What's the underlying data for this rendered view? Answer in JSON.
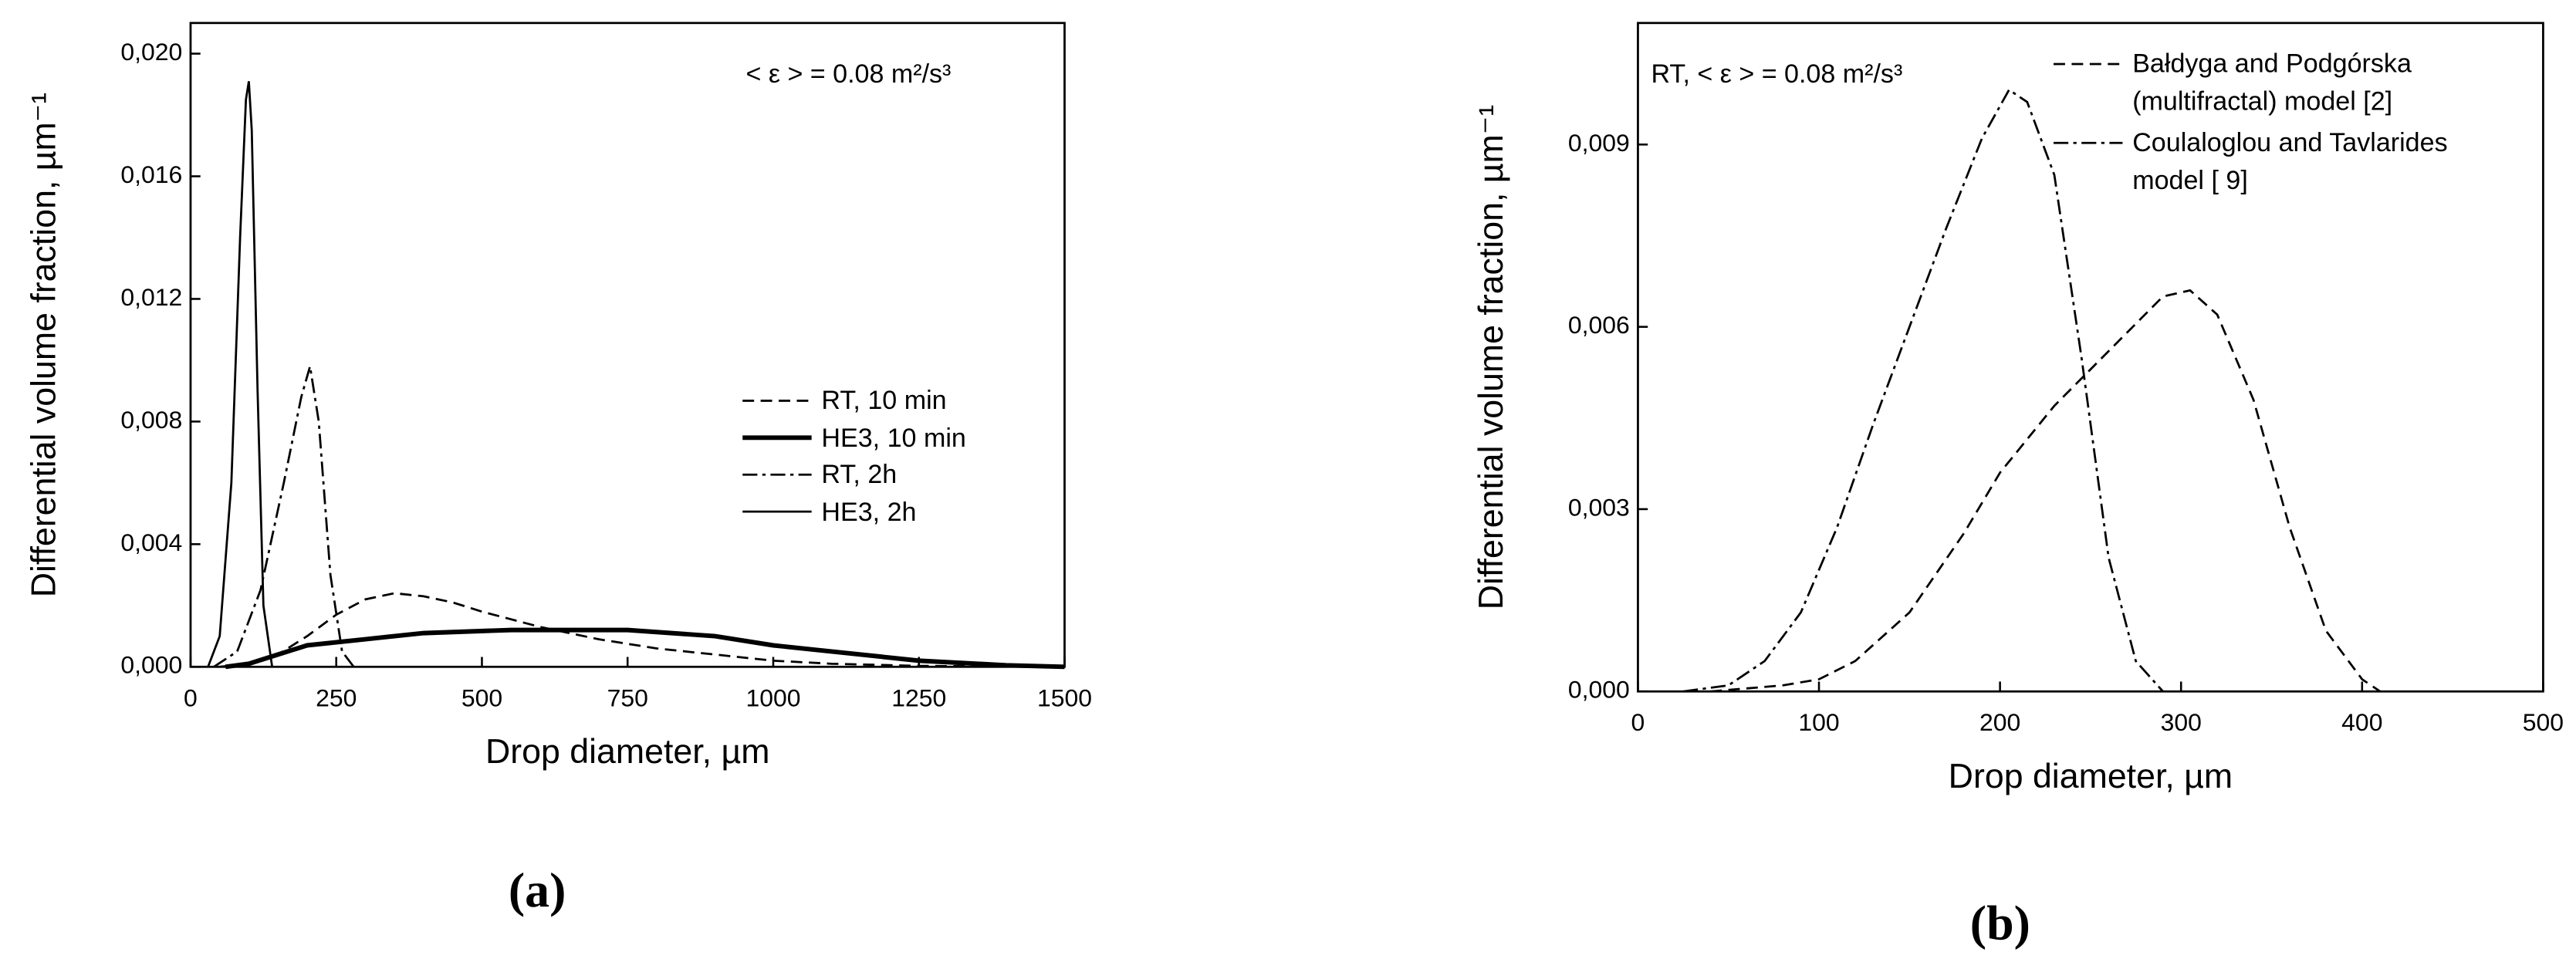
{
  "chart_data": [
    {
      "type": "line",
      "annotation": "< ε > = 0.08 m²/s³",
      "xlabel": "Drop diameter, µm",
      "ylabel": "Differential volume fraction, µm⁻¹",
      "panel_label": "(a)",
      "xlim": [
        0,
        1500
      ],
      "ylim": [
        0,
        0.021
      ],
      "xticks": [
        0,
        250,
        500,
        750,
        1000,
        1250,
        1500
      ],
      "yticks": [
        {
          "value": 0,
          "label": "0,000"
        },
        {
          "value": 0.004,
          "label": "0,004"
        },
        {
          "value": 0.008,
          "label": "0,008"
        },
        {
          "value": 0.012,
          "label": "0,012"
        },
        {
          "value": 0.016,
          "label": "0,016"
        },
        {
          "value": 0.02,
          "label": "0,020"
        }
      ],
      "legend": "center-right",
      "series": [
        {
          "name": "RT, 10 min",
          "color": "#000000",
          "dash": "dash",
          "width": "thin",
          "x": [
            50,
            100,
            150,
            200,
            250,
            300,
            350,
            400,
            450,
            500,
            600,
            700,
            800,
            900,
            1000,
            1100,
            1250,
            1500
          ],
          "values": [
            0,
            0.0001,
            0.0004,
            0.001,
            0.0017,
            0.0022,
            0.0024,
            0.0023,
            0.0021,
            0.0018,
            0.0013,
            0.0009,
            0.0006,
            0.0004,
            0.0002,
            0.0001,
            3e-05,
            0
          ]
        },
        {
          "name": "HE3, 10 min",
          "color": "#000000",
          "dash": "solid",
          "width": "thick",
          "x": [
            60,
            100,
            150,
            200,
            300,
            400,
            550,
            750,
            900,
            1000,
            1100,
            1250,
            1400,
            1500
          ],
          "values": [
            0,
            0.0001,
            0.0004,
            0.0007,
            0.0009,
            0.0011,
            0.0012,
            0.0012,
            0.001,
            0.0007,
            0.0005,
            0.0002,
            5e-05,
            0
          ]
        },
        {
          "name": "RT, 2h",
          "color": "#000000",
          "dash": "dashdot",
          "width": "thin",
          "x": [
            40,
            80,
            120,
            160,
            190,
            205,
            220,
            240,
            260,
            280
          ],
          "values": [
            0,
            0.0005,
            0.0025,
            0.006,
            0.0088,
            0.0098,
            0.008,
            0.003,
            0.0005,
            0
          ]
        },
        {
          "name": "HE3, 2h",
          "color": "#000000",
          "dash": "solid",
          "width": "thin",
          "x": [
            30,
            50,
            70,
            85,
            95,
            100,
            105,
            115,
            125,
            140
          ],
          "values": [
            0,
            0.001,
            0.006,
            0.014,
            0.0185,
            0.0191,
            0.0175,
            0.009,
            0.002,
            0
          ]
        }
      ]
    },
    {
      "type": "line",
      "annotation": "RT, < ε > = 0.08 m²/s³",
      "xlabel": "Drop diameter, µm",
      "ylabel": "Differential volume fraction, µm⁻¹",
      "panel_label": "(b)",
      "xlim": [
        0,
        500
      ],
      "ylim": [
        0,
        0.011
      ],
      "xticks": [
        0,
        100,
        200,
        300,
        400,
        500
      ],
      "yticks": [
        {
          "value": 0,
          "label": "0,000"
        },
        {
          "value": 0.003,
          "label": "0,003"
        },
        {
          "value": 0.006,
          "label": "0,006"
        },
        {
          "value": 0.009,
          "label": "0,009"
        }
      ],
      "legend": "top-right",
      "series": [
        {
          "name": "Bałdyga and Podgórska (multifractal) model [2]",
          "color": "#000000",
          "dash": "dash",
          "width": "thin",
          "x": [
            40,
            80,
            100,
            120,
            150,
            180,
            200,
            230,
            260,
            290,
            305,
            320,
            340,
            360,
            380,
            400,
            410
          ],
          "values": [
            0,
            0.0001,
            0.0002,
            0.0005,
            0.0013,
            0.0026,
            0.0036,
            0.0047,
            0.0056,
            0.0065,
            0.0066,
            0.0062,
            0.0048,
            0.0027,
            0.001,
            0.0002,
            0
          ]
        },
        {
          "name": "Coulaloglou and Tavlarides model [ 9]",
          "color": "#000000",
          "dash": "dashdot",
          "width": "thin",
          "x": [
            25,
            50,
            70,
            90,
            110,
            130,
            150,
            170,
            190,
            205,
            215,
            230,
            245,
            260,
            275,
            290
          ],
          "values": [
            0,
            0.0001,
            0.0005,
            0.0013,
            0.0027,
            0.0044,
            0.006,
            0.0076,
            0.0091,
            0.0099,
            0.0097,
            0.0085,
            0.0055,
            0.0022,
            0.0005,
            0
          ]
        }
      ]
    }
  ]
}
